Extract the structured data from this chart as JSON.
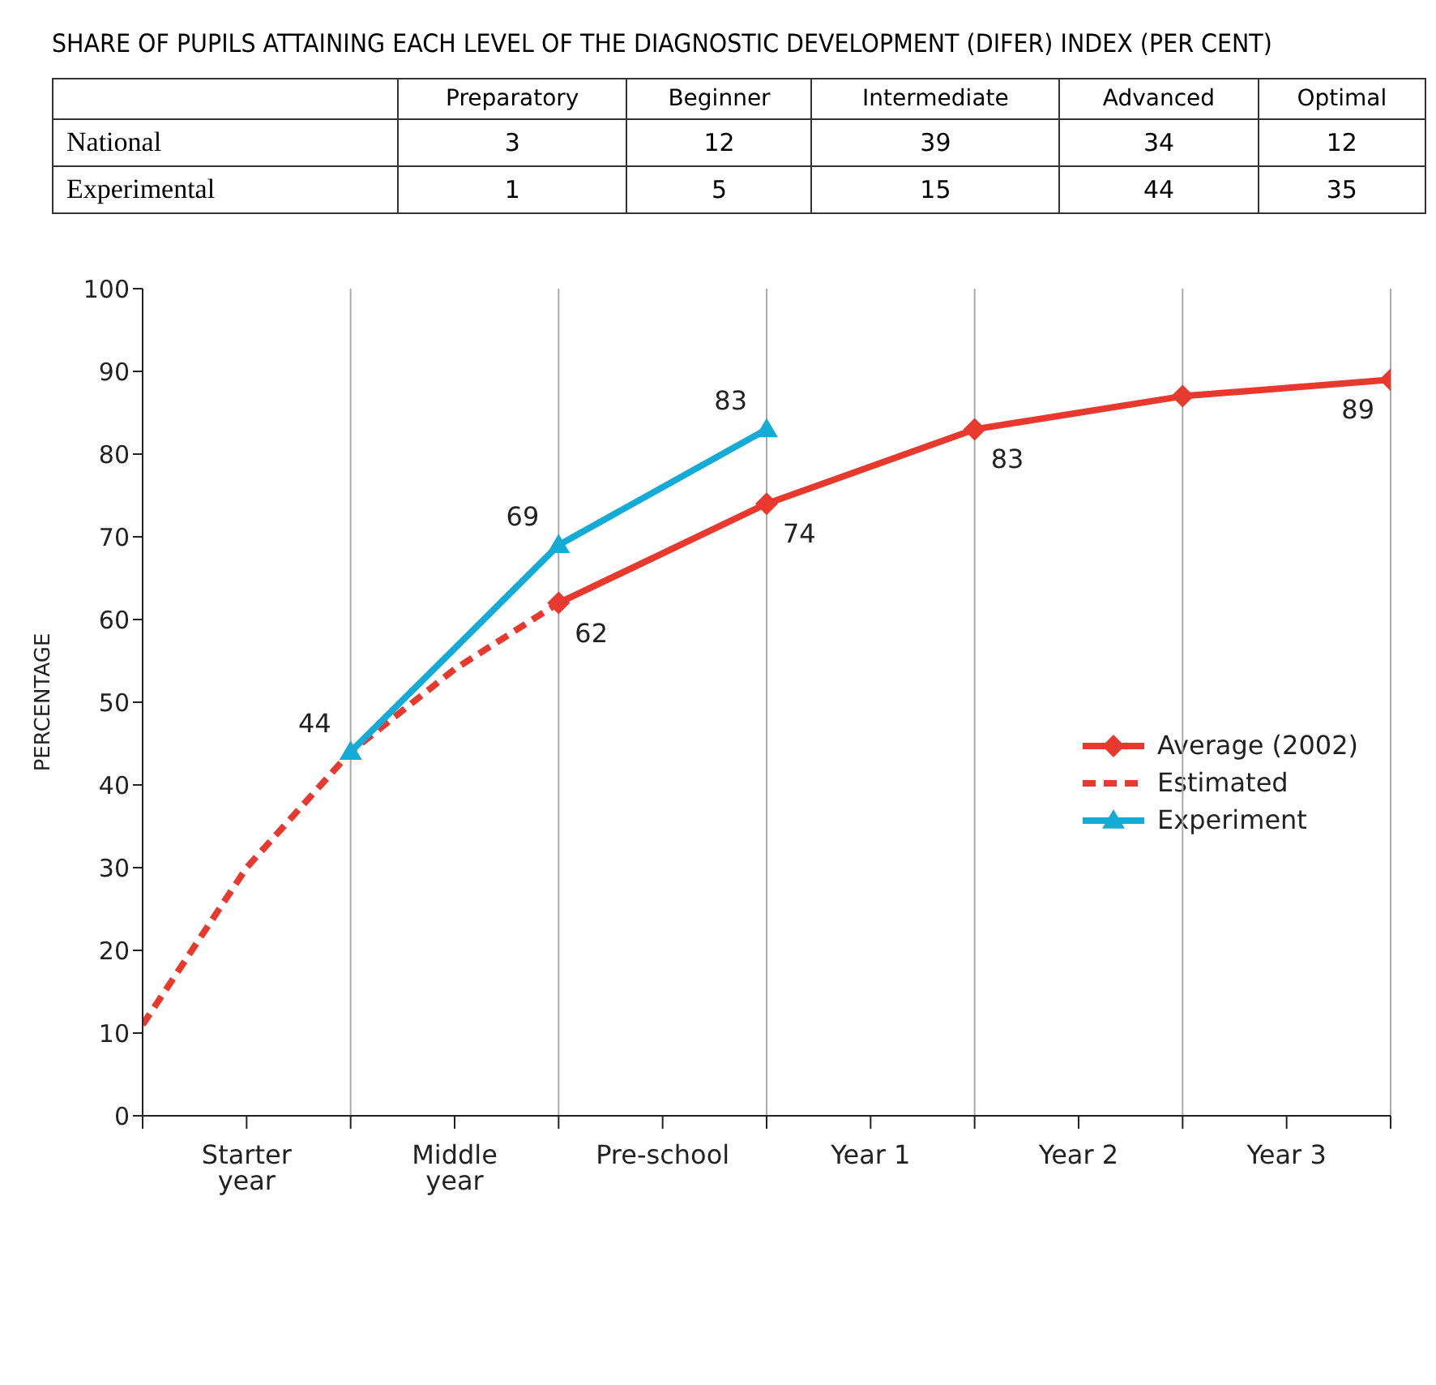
{
  "chart_data": [
    {
      "type": "heatmap",
      "data_labels": true,
      "title": "SHARE OF PUPILS ATTAINING EACH LEVEL OF THE DIAGNOSTIC DEVELOPMENT (DIFER) INDEX (PER CENT)",
      "categories": [
        "Preparatory",
        "Beginner",
        "Intermediate",
        "Advanced",
        "Optimal"
      ],
      "y_categories": [
        "National",
        "Experimental"
      ],
      "cells": [
        [
          3,
          12,
          39,
          34,
          12
        ],
        [
          1,
          5,
          15,
          44,
          35
        ]
      ]
    },
    {
      "type": "line",
      "ylabel": "PERCENTAGE",
      "categories": [
        null,
        "Starter year",
        null,
        "Middle year",
        null,
        "Pre-school",
        null,
        "Year 1",
        null,
        "Year 2",
        null,
        "Year 3",
        null
      ],
      "ylim": [
        0,
        100
      ],
      "yticks": [
        0,
        10,
        20,
        30,
        40,
        50,
        60,
        70,
        80,
        90,
        100
      ],
      "grid": "x",
      "legend": "right",
      "series": [
        {
          "name": "Average (2002)",
          "color": "#e8392f",
          "marker": "diamond",
          "line_style": "solid",
          "values": [
            null,
            null,
            null,
            null,
            62,
            null,
            74,
            null,
            83,
            null,
            87,
            null,
            89
          ],
          "value_labels": [
            null,
            null,
            null,
            null,
            "62",
            null,
            "74",
            null,
            "83",
            null,
            null,
            null,
            "89"
          ]
        },
        {
          "name": "Estimated",
          "color": "#e8392f",
          "marker": "none",
          "line_style": "dashed",
          "values": [
            11,
            30,
            44,
            54,
            62,
            null,
            null,
            null,
            null,
            null,
            null,
            null,
            null
          ]
        },
        {
          "name": "Experiment",
          "color": "#14acd6",
          "marker": "triangle",
          "line_style": "solid",
          "values": [
            null,
            null,
            44,
            null,
            69,
            null,
            83,
            null,
            null,
            null,
            null,
            null,
            null
          ],
          "value_labels": [
            null,
            null,
            "44",
            null,
            "69",
            null,
            "83",
            null,
            null,
            null,
            null,
            null,
            null
          ]
        }
      ]
    }
  ]
}
